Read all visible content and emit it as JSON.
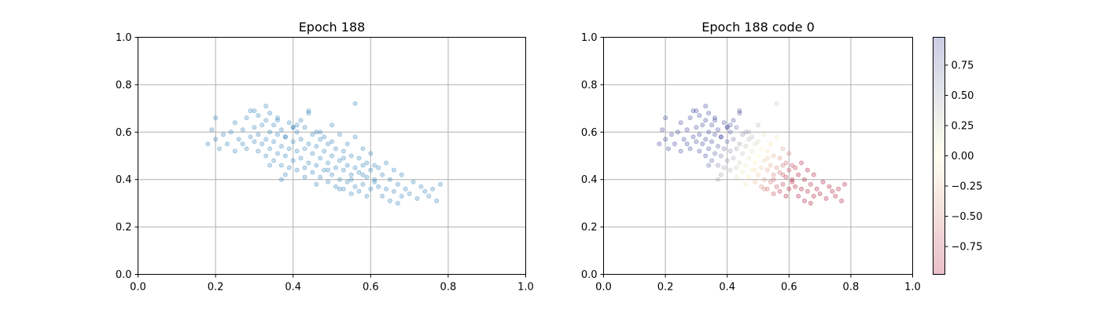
{
  "chart_data": [
    {
      "type": "scatter",
      "title": "Epoch 188",
      "xlabel": "",
      "ylabel": "",
      "xlim": [
        0.0,
        1.0
      ],
      "ylim": [
        0.0,
        1.0
      ],
      "x_ticks": [
        "0.0",
        "0.2",
        "0.4",
        "0.6",
        "0.8",
        "1.0"
      ],
      "y_ticks": [
        "0.0",
        "0.2",
        "0.4",
        "0.6",
        "0.8",
        "1.0"
      ],
      "grid": true,
      "marker_color": "#1f77b4",
      "marker_alpha": 0.25,
      "points_x": [
        0.18,
        0.19,
        0.2,
        0.2,
        0.21,
        0.22,
        0.23,
        0.24,
        0.25,
        0.25,
        0.26,
        0.27,
        0.27,
        0.28,
        0.28,
        0.29,
        0.29,
        0.3,
        0.3,
        0.31,
        0.31,
        0.31,
        0.32,
        0.32,
        0.33,
        0.33,
        0.33,
        0.34,
        0.34,
        0.34,
        0.35,
        0.35,
        0.35,
        0.36,
        0.36,
        0.36,
        0.37,
        0.37,
        0.37,
        0.38,
        0.38,
        0.38,
        0.39,
        0.39,
        0.39,
        0.4,
        0.4,
        0.4,
        0.41,
        0.41,
        0.41,
        0.42,
        0.42,
        0.42,
        0.43,
        0.43,
        0.43,
        0.44,
        0.44,
        0.44,
        0.45,
        0.45,
        0.45,
        0.46,
        0.46,
        0.46,
        0.47,
        0.47,
        0.47,
        0.48,
        0.48,
        0.48,
        0.49,
        0.49,
        0.49,
        0.5,
        0.5,
        0.5,
        0.51,
        0.51,
        0.51,
        0.52,
        0.52,
        0.52,
        0.53,
        0.53,
        0.53,
        0.54,
        0.54,
        0.54,
        0.55,
        0.55,
        0.55,
        0.56,
        0.56,
        0.56,
        0.57,
        0.57,
        0.57,
        0.58,
        0.58,
        0.58,
        0.59,
        0.59,
        0.59,
        0.6,
        0.6,
        0.6,
        0.61,
        0.61,
        0.62,
        0.62,
        0.63,
        0.63,
        0.64,
        0.64,
        0.65,
        0.65,
        0.66,
        0.66,
        0.67,
        0.67,
        0.68,
        0.68,
        0.69,
        0.7,
        0.71,
        0.72,
        0.73,
        0.74,
        0.75,
        0.76,
        0.77,
        0.78,
        0.3,
        0.33,
        0.36,
        0.38,
        0.41,
        0.44,
        0.47,
        0.5,
        0.53,
        0.56,
        0.34,
        0.37,
        0.4,
        0.43,
        0.46,
        0.49,
        0.52,
        0.55,
        0.58,
        0.61
      ],
      "points_y": [
        0.55,
        0.61,
        0.57,
        0.66,
        0.53,
        0.59,
        0.55,
        0.6,
        0.52,
        0.64,
        0.57,
        0.55,
        0.61,
        0.53,
        0.66,
        0.58,
        0.69,
        0.56,
        0.62,
        0.52,
        0.59,
        0.67,
        0.55,
        0.63,
        0.5,
        0.57,
        0.65,
        0.53,
        0.6,
        0.68,
        0.48,
        0.56,
        0.63,
        0.51,
        0.59,
        0.66,
        0.46,
        0.54,
        0.61,
        0.42,
        0.5,
        0.58,
        0.45,
        0.53,
        0.64,
        0.48,
        0.56,
        0.62,
        0.44,
        0.52,
        0.6,
        0.49,
        0.57,
        0.65,
        0.45,
        0.53,
        0.62,
        0.47,
        0.55,
        0.68,
        0.43,
        0.51,
        0.59,
        0.46,
        0.54,
        0.6,
        0.41,
        0.49,
        0.57,
        0.44,
        0.52,
        0.58,
        0.39,
        0.47,
        0.55,
        0.42,
        0.5,
        0.56,
        0.37,
        0.45,
        0.53,
        0.4,
        0.48,
        0.59,
        0.36,
        0.44,
        0.52,
        0.39,
        0.46,
        0.55,
        0.34,
        0.42,
        0.5,
        0.37,
        0.45,
        0.58,
        0.35,
        0.43,
        0.49,
        0.38,
        0.46,
        0.53,
        0.33,
        0.41,
        0.47,
        0.36,
        0.44,
        0.51,
        0.39,
        0.46,
        0.37,
        0.45,
        0.33,
        0.42,
        0.36,
        0.47,
        0.31,
        0.4,
        0.35,
        0.44,
        0.3,
        0.38,
        0.33,
        0.42,
        0.36,
        0.34,
        0.39,
        0.32,
        0.37,
        0.35,
        0.33,
        0.36,
        0.31,
        0.38,
        0.69,
        0.71,
        0.65,
        0.58,
        0.63,
        0.69,
        0.6,
        0.63,
        0.49,
        0.72,
        0.46,
        0.4,
        0.62,
        0.41,
        0.38,
        0.44,
        0.36,
        0.4,
        0.42,
        0.4
      ]
    },
    {
      "type": "scatter",
      "title": "Epoch 188 code 0",
      "xlabel": "",
      "ylabel": "",
      "xlim": [
        0.0,
        1.0
      ],
      "ylim": [
        0.0,
        1.0
      ],
      "x_ticks": [
        "0.0",
        "0.2",
        "0.4",
        "0.6",
        "0.8",
        "1.0"
      ],
      "y_ticks": [
        "0.0",
        "0.2",
        "0.4",
        "0.6",
        "0.8",
        "1.0"
      ],
      "grid": true,
      "marker_alpha": 0.25,
      "colormap": "RdYlBu",
      "colorbar": {
        "range": [
          -0.98,
          0.98
        ],
        "ticks": [
          0.75,
          0.5,
          0.25,
          0.0,
          -0.25,
          -0.5,
          -0.75
        ],
        "tick_labels": [
          "0.75",
          "0.50",
          "0.25",
          "0.00",
          "−0.25",
          "−0.50",
          "−0.75"
        ],
        "low_color": "#a50026",
        "mid_color": "#ffffbf",
        "high_color": "#313695"
      }
    }
  ]
}
